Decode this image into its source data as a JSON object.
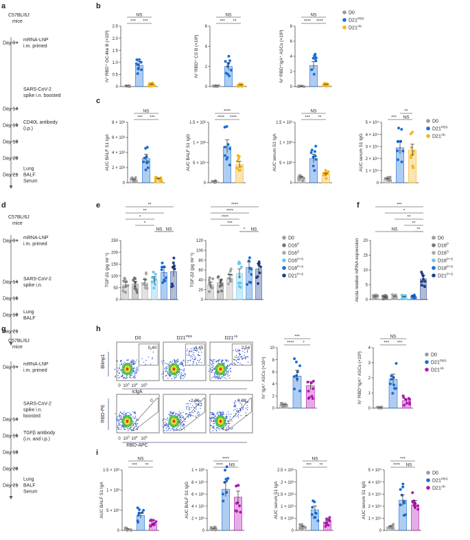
{
  "colors": {
    "d0": "#9a9a9a",
    "pbs": "#1a6fd6",
    "ab": "#f2b51b",
    "magenta": "#b515b5",
    "p": "#757575",
    "s": "#a9a9a9",
    "ps16": "#67c7ee",
    "ps18": "#1a6fd6",
    "ps21": "#1f3e8c"
  },
  "timelines": [
    {
      "panel": "a",
      "mice": [
        "C57BL/6J",
        "mice"
      ],
      "events": [
        {
          "day": "Day 0",
          "text": [
            "mRNA-LNP",
            "i.m. primed"
          ]
        },
        {
          "day": "",
          "text": [
            "SARS-CoV-2",
            "spike i.n. boosted"
          ]
        },
        {
          "day": "Day 14",
          "text": []
        },
        {
          "day": "Day 16",
          "text": [
            "CD40L antibody",
            "(i.p.)"
          ]
        },
        {
          "day": "Day 18",
          "text": []
        },
        {
          "day": "Day 20",
          "text": []
        },
        {
          "day": "Day 21",
          "text": [
            "Lung",
            "BALF",
            "Serum"
          ]
        }
      ]
    },
    {
      "panel": "d",
      "mice": [
        "C57BL/6J",
        "mice"
      ],
      "events": [
        {
          "day": "Day 0",
          "text": [
            "mRNA-LNP",
            "i.m. primed"
          ]
        },
        {
          "day": "Day 14",
          "text": [
            "SARS-CoV-2",
            "spike i.n."
          ]
        },
        {
          "day": "Day 16",
          "text": []
        },
        {
          "day": "Day 18",
          "text": [
            "Lung",
            "BALF"
          ]
        },
        {
          "day": "Day 21",
          "text": []
        }
      ]
    },
    {
      "panel": "g",
      "mice": [
        "C57BL/6J",
        "mice"
      ],
      "events": [
        {
          "day": "Day 0",
          "text": [
            "mRNA-LNP",
            "i.m. primed"
          ]
        },
        {
          "day": "",
          "text": [
            "SARS-CoV-2",
            "spike i.n.",
            "boosted"
          ]
        },
        {
          "day": "Day 14",
          "text": []
        },
        {
          "day": "Day 16",
          "text": [
            "TGFβ antibody",
            "(i.n. and i.p.)"
          ]
        },
        {
          "day": "Day 18",
          "text": []
        },
        {
          "day": "Day 20",
          "text": []
        },
        {
          "day": "Day 21",
          "text": [
            "Lung",
            "BALF",
            "Serum"
          ]
        }
      ]
    }
  ],
  "legends": {
    "b": [
      "D0",
      "D21PBS",
      "D21Ab"
    ],
    "c": [
      "D0",
      "D21PBS",
      "D21Ab"
    ],
    "e": [
      "D0",
      "D16P",
      "D16S",
      "D16P+S",
      "D18P+S",
      "D21P+S"
    ],
    "f": [
      "D0",
      "D16P",
      "D16S",
      "D16P+S",
      "D18P+S",
      "D21P+S"
    ],
    "h": [
      "D0",
      "D21PBS",
      "D21Ab"
    ],
    "i": [
      "D0",
      "D21PBS",
      "D21Ab"
    ]
  },
  "flow": {
    "column_titles": [
      "D0",
      "D21PBS",
      "D21Ab"
    ],
    "top_gate_values": [
      "0.40",
      "4.45",
      "2.54"
    ],
    "bottom_gate_values": [
      "0",
      "2.86",
      "0.82"
    ],
    "top_ylabel": "Blimp1",
    "top_xlabel": "iclgA",
    "bottom_ylabel": "RBD-PE",
    "bottom_xlabel": "RBD-APC",
    "ticks": [
      "0",
      "10",
      "10",
      "10"
    ],
    "tick_exps": [
      "",
      "3",
      "4",
      "5"
    ]
  },
  "chart_data": [
    {
      "panel": "b",
      "type": "bar",
      "ylabel": "IV⁻RBD⁺ GC-like B (×10³)",
      "yticks": [
        "0",
        "0.5",
        "1.0",
        "1.5",
        "2.0",
        "2.5"
      ],
      "ylim": [
        0,
        2.5
      ],
      "groups": [
        "D0",
        "D21PBS",
        "D21Ab"
      ],
      "values": [
        0.02,
        0.88,
        0.08
      ],
      "sig": [
        "***",
        "***",
        "NS"
      ]
    },
    {
      "panel": "b",
      "type": "bar",
      "ylabel": "IV⁻RBD⁺ CS B (×10³)",
      "yticks": [
        "0",
        "2",
        "4",
        "6"
      ],
      "ylim": [
        0,
        6
      ],
      "groups": [
        "D0",
        "D21PBS",
        "D21Ab"
      ],
      "values": [
        0.05,
        2.0,
        0.15
      ],
      "sig": [
        "***",
        "**",
        "NS"
      ]
    },
    {
      "panel": "b",
      "type": "bar",
      "ylabel": "IV⁻RBD⁺IgA⁺ ASCs (×10³)",
      "yticks": [
        "0",
        "2",
        "4",
        "6",
        "8"
      ],
      "ylim": [
        0,
        8
      ],
      "groups": [
        "D0",
        "D21PBS",
        "D21Ab"
      ],
      "values": [
        0.02,
        2.8,
        0.25
      ],
      "sig": [
        "****",
        "****",
        "NS"
      ]
    },
    {
      "panel": "c",
      "type": "bar",
      "ylabel": "AUC BALF S1 IgA",
      "yticks": [
        "0",
        "2 × 10³",
        "4 × 10³",
        "6 × 10³",
        "8 × 10³"
      ],
      "ylim": [
        0,
        8000
      ],
      "groups": [
        "D0",
        "D21PBS",
        "D21Ab"
      ],
      "values": [
        400,
        3200,
        500
      ],
      "sig": [
        "***",
        "***",
        "NS"
      ]
    },
    {
      "panel": "c",
      "type": "bar",
      "ylabel": "AUC BALF S1 IgG",
      "yticks": [
        "0",
        "5 × 10¹",
        "1 × 10²",
        "1.5 × 10²"
      ],
      "ylim": [
        0,
        150
      ],
      "groups": [
        "D0",
        "D21PBS",
        "D21Ab"
      ],
      "values": [
        3,
        90,
        45
      ],
      "sig": [
        "****",
        "****",
        "****"
      ]
    },
    {
      "panel": "c",
      "type": "bar",
      "ylabel": "AUC serum S1 IgA",
      "yticks": [
        "0",
        "5 × 10²",
        "1 × 10³",
        "1.5 × 10³"
      ],
      "ylim": [
        0,
        1500
      ],
      "groups": [
        "D0",
        "D21PBS",
        "D21Ab"
      ],
      "values": [
        130,
        600,
        200
      ],
      "sig": [
        "***",
        "**",
        "NS"
      ]
    },
    {
      "panel": "c",
      "type": "bar",
      "ylabel": "AUC serum S1 IgG",
      "yticks": [
        "0",
        "1 × 10⁴",
        "2 × 10⁴",
        "3 × 10⁴",
        "4 × 10⁴",
        "5 × 10⁴"
      ],
      "ylim": [
        0,
        50000
      ],
      "groups": [
        "D0",
        "D21PBS",
        "D21Ab"
      ],
      "values": [
        3000,
        29000,
        27000
      ],
      "sig": [
        "***",
        "NS",
        "**"
      ]
    },
    {
      "panel": "e",
      "type": "bar",
      "ylabel": "TGF-β1 (pg ml⁻¹)",
      "yticks": [
        "0",
        "50",
        "100",
        "150",
        "200",
        "250"
      ],
      "ylim": [
        0,
        250
      ],
      "groups": [
        "D0",
        "D16P",
        "D16S",
        "D16P+S",
        "D18P+S",
        "D21P+S"
      ],
      "values": [
        62,
        65,
        72,
        82,
        115,
        118
      ],
      "sig": [
        "**",
        "**",
        "*",
        "*",
        "NS",
        "NS"
      ]
    },
    {
      "panel": "e",
      "type": "bar",
      "ylabel": "TGF-β2 (pg ml⁻¹)",
      "yticks": [
        "0",
        "20",
        "40",
        "60",
        "80",
        "100",
        "120"
      ],
      "ylim": [
        0,
        120
      ],
      "groups": [
        "D0",
        "D16P",
        "D16S",
        "D16P+S",
        "D18P+S",
        "D21P+S"
      ],
      "values": [
        30,
        34,
        43,
        53,
        65,
        62
      ],
      "sig": [
        "****",
        "****",
        "****",
        "***",
        "*",
        "NS"
      ]
    },
    {
      "panel": "f",
      "type": "bar",
      "ylabel": "Aicda relative mRNA expression",
      "yticks": [
        "0",
        "5",
        "10",
        "15",
        "20"
      ],
      "ylim": [
        0,
        20
      ],
      "groups": [
        "D0",
        "D16P",
        "D16S",
        "D16P+S",
        "D18P+S",
        "D21P+S"
      ],
      "values": [
        1,
        0.8,
        1,
        0.9,
        1,
        7
      ],
      "sig": [
        "***",
        "*",
        "**",
        "**",
        "NS",
        "**"
      ]
    },
    {
      "panel": "h",
      "type": "bar",
      "ylabel": "IV⁻IgA⁺ ASCs (×10⁴)",
      "yticks": [
        "0",
        "2",
        "4",
        "6",
        "8",
        "10"
      ],
      "ylim": [
        0,
        10
      ],
      "groups": [
        "D0",
        "D21PBS",
        "D21Ab"
      ],
      "values": [
        0.5,
        5.3,
        3.7
      ],
      "sig": [
        "****",
        "*",
        "***"
      ]
    },
    {
      "panel": "h",
      "type": "bar",
      "ylabel": "IV⁻RBD⁺IgA⁺ ASCs (×10³)",
      "yticks": [
        "0",
        "1",
        "2",
        "3",
        "4"
      ],
      "ylim": [
        0,
        4
      ],
      "groups": [
        "D0",
        "D21PBS",
        "D21Ab"
      ],
      "values": [
        0.02,
        1.9,
        0.5
      ],
      "sig": [
        "***",
        "***",
        "NS"
      ]
    },
    {
      "panel": "i",
      "type": "bar",
      "ylabel": "AUC BALF S1 IgA",
      "yticks": [
        "0",
        "5 × 10²",
        "1 × 10³",
        "1.5 × 10³"
      ],
      "ylim": [
        0,
        1500
      ],
      "groups": [
        "D0",
        "D21PBS",
        "D21Ab"
      ],
      "values": [
        30,
        370,
        160
      ],
      "sig": [
        "***",
        "**",
        "NS"
      ]
    },
    {
      "panel": "i",
      "type": "bar",
      "ylabel": "AUC BALF S1 IgG",
      "yticks": [
        "0",
        "2 × 10¹",
        "4 × 10¹",
        "6 × 10¹",
        "8 × 10¹",
        "1 × 10²"
      ],
      "ylim": [
        0,
        100
      ],
      "groups": [
        "D0",
        "D21PBS",
        "D21Ab"
      ],
      "values": [
        3,
        68,
        55
      ],
      "sig": [
        "****",
        "NS",
        "****"
      ]
    },
    {
      "panel": "i",
      "type": "bar",
      "ylabel": "AUC serum S1 IgA",
      "yticks": [
        "0",
        "5 × 10²",
        "1 × 10³",
        "1.5 × 10³",
        "2 × 10³",
        "2.5 × 10³"
      ],
      "ylim": [
        0,
        2500
      ],
      "groups": [
        "D0",
        "D21PBS",
        "D21Ab"
      ],
      "values": [
        150,
        850,
        350
      ],
      "sig": [
        "***",
        "**",
        "NS"
      ]
    },
    {
      "panel": "i",
      "type": "bar",
      "ylabel": "AUC serum S1 IgG",
      "yticks": [
        "0",
        "1 × 10⁴",
        "2 × 10⁴",
        "3 × 10⁴",
        "4 × 10⁴",
        "5 × 10⁴"
      ],
      "ylim": [
        0,
        50000
      ],
      "groups": [
        "D0",
        "D21PBS",
        "D21Ab"
      ],
      "values": [
        3000,
        25000,
        21000
      ],
      "sig": [
        "****",
        "NS",
        "***"
      ]
    }
  ]
}
